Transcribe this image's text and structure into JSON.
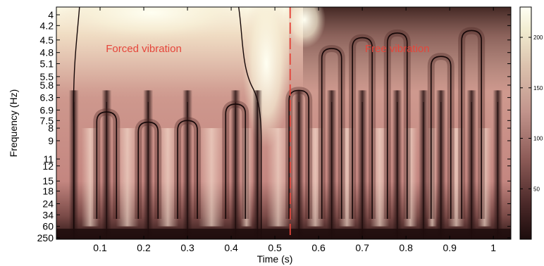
{
  "chart_data": {
    "type": "heatmap",
    "title": "",
    "xlabel": "Time (s)",
    "ylabel": "Frequency (Hz)",
    "xlim": [
      0,
      1.04
    ],
    "x_ticks": [
      0.1,
      0.2,
      0.3,
      0.4,
      0.5,
      0.6,
      0.7,
      0.8,
      0.9,
      1
    ],
    "x_tick_labels": [
      "0.1",
      "0.2",
      "0.3",
      "0.4",
      "0.5",
      "0.6",
      "0.7",
      "0.8",
      "0.9",
      "1"
    ],
    "y_scale": "reciprocal",
    "y_tick_labels": [
      "4",
      "4.2",
      "4.5",
      "4.8",
      "5.1",
      "5.5",
      "5.8",
      "6.3",
      "6.9",
      "7.5",
      "8",
      "9",
      "11",
      "12",
      "15",
      "18",
      "24",
      "34",
      "60",
      "250"
    ],
    "divider": {
      "time": 0.535,
      "style": "dashed",
      "color": "#e5453a"
    },
    "annotations": [
      {
        "text": "Forced vibration",
        "time": 0.2,
        "frequency": 4.7,
        "color": "#e5453a"
      },
      {
        "text": "Free vibration",
        "time": 0.78,
        "frequency": 4.7,
        "color": "#e5453a"
      }
    ],
    "colorbar": {
      "ticks": [
        50,
        100,
        150,
        200
      ],
      "tick_labels": [
        "50",
        "100",
        "150",
        "200"
      ],
      "range": [
        0,
        230
      ]
    },
    "colormap": "pink",
    "colors": {
      "low": "#1c0c0c",
      "mid": "#c88a80",
      "high": "#fffff4",
      "annotation": "#e5453a"
    },
    "vertical_ridges_s": [
      0.04,
      0.115,
      0.21,
      0.3,
      0.41,
      0.46,
      0.555,
      0.63,
      0.7,
      0.78,
      0.84,
      0.88,
      0.95,
      1.01
    ],
    "dome_caps": [
      {
        "time": 0.115,
        "frequency": 7.0
      },
      {
        "time": 0.21,
        "frequency": 7.6
      },
      {
        "time": 0.3,
        "frequency": 7.5
      },
      {
        "time": 0.41,
        "frequency": 6.6
      },
      {
        "time": 0.555,
        "frequency": 6.0
      },
      {
        "time": 0.63,
        "frequency": 4.7
      },
      {
        "time": 0.7,
        "frequency": 4.45
      },
      {
        "time": 0.78,
        "frequency": 4.35
      },
      {
        "time": 0.88,
        "frequency": 4.9
      },
      {
        "time": 0.95,
        "frequency": 4.3
      }
    ]
  }
}
